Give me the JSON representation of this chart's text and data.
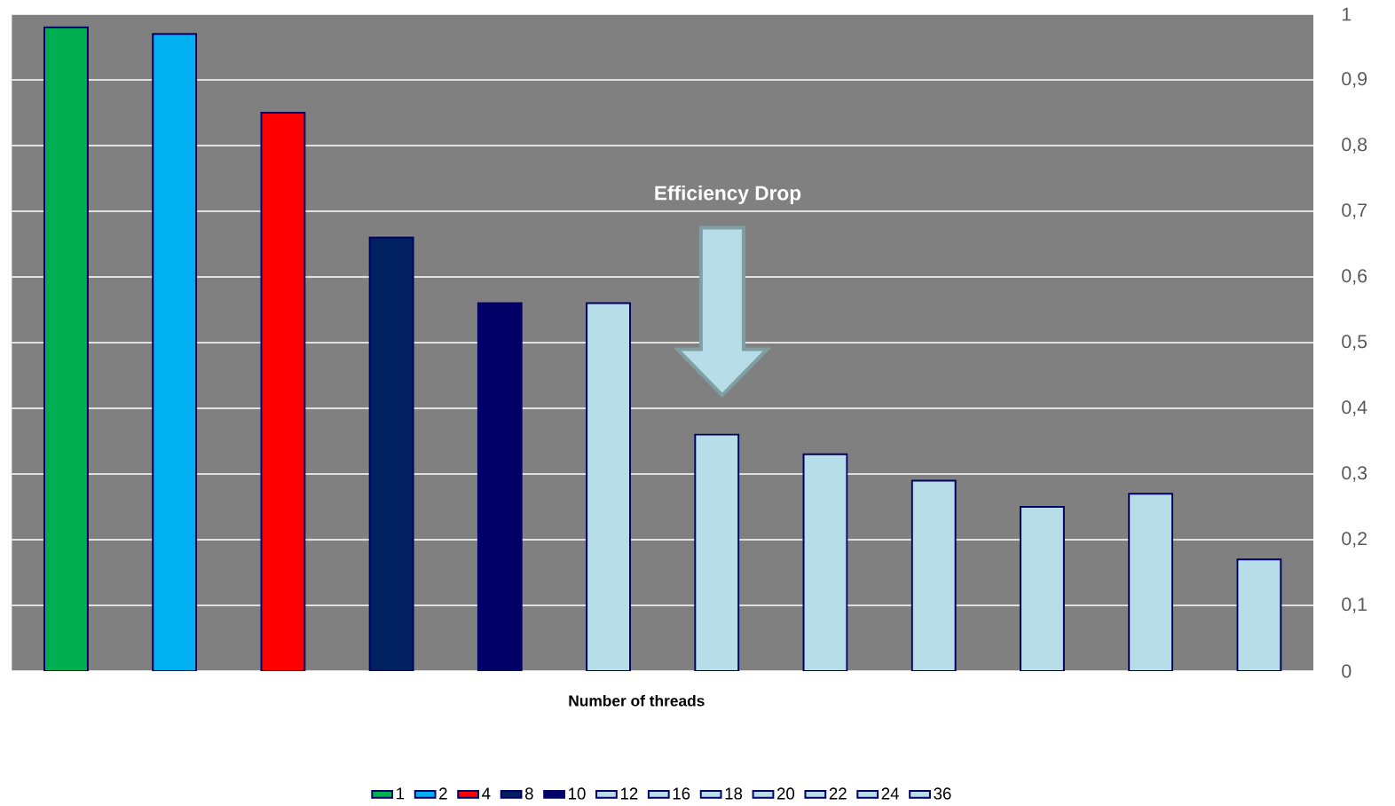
{
  "chart_data": {
    "type": "bar",
    "xlabel": "Number of threads",
    "annotations": [
      "Efficiency Drop"
    ],
    "categories": [
      null,
      null,
      null,
      null,
      null,
      null,
      null,
      null,
      null,
      null,
      null,
      null
    ],
    "ylim": [
      0,
      1
    ],
    "yticks": [
      0,
      {
        "value": 0.1,
        "label": "0,1"
      },
      {
        "value": 0.2,
        "label": "0,2"
      },
      {
        "value": 0.3,
        "label": "0,3"
      },
      {
        "value": 0.4,
        "label": "0,4"
      },
      {
        "value": 0.5,
        "label": "0,5"
      },
      {
        "value": 0.6,
        "label": "0,6"
      },
      {
        "value": 0.7,
        "label": "0,7"
      },
      {
        "value": 0.8,
        "label": "0,8"
      },
      {
        "value": 0.9,
        "label": "0,9"
      },
      1
    ],
    "grid": "y",
    "legend": "bottom",
    "series": [
      {
        "name": "1",
        "color": "#00b050",
        "values": [
          0.98,
          null,
          null,
          null,
          null,
          null,
          null,
          null,
          null,
          null,
          null,
          null
        ]
      },
      {
        "name": "2",
        "color": "#00b0f0",
        "values": [
          null,
          0.97,
          null,
          null,
          null,
          null,
          null,
          null,
          null,
          null,
          null,
          null
        ]
      },
      {
        "name": "4",
        "color": "#ff0000",
        "values": [
          null,
          null,
          0.85,
          null,
          null,
          null,
          null,
          null,
          null,
          null,
          null,
          null
        ]
      },
      {
        "name": "8",
        "color": "#002060",
        "values": [
          null,
          null,
          null,
          0.66,
          null,
          null,
          null,
          null,
          null,
          null,
          null,
          null
        ]
      },
      {
        "name": "10",
        "color": "#000066",
        "values": [
          null,
          null,
          null,
          null,
          0.56,
          null,
          null,
          null,
          null,
          null,
          null,
          null
        ]
      },
      {
        "name": "12",
        "color": "#b7dee8",
        "values": [
          null,
          null,
          null,
          null,
          null,
          0.56,
          null,
          null,
          null,
          null,
          null,
          null
        ]
      },
      {
        "name": "16",
        "color": "#b7dee8",
        "values": [
          null,
          null,
          null,
          null,
          null,
          null,
          0.36,
          null,
          null,
          null,
          null,
          null
        ]
      },
      {
        "name": "18",
        "color": "#b7dee8",
        "values": [
          null,
          null,
          null,
          null,
          null,
          null,
          null,
          0.33,
          null,
          null,
          null,
          null
        ]
      },
      {
        "name": "20",
        "color": "#b7dee8",
        "values": [
          null,
          null,
          null,
          null,
          null,
          null,
          null,
          null,
          0.29,
          null,
          null,
          null
        ]
      },
      {
        "name": "22",
        "color": "#b7dee8",
        "values": [
          null,
          null,
          null,
          null,
          null,
          null,
          null,
          null,
          null,
          0.25,
          null,
          null
        ]
      },
      {
        "name": "24",
        "color": "#b7dee8",
        "values": [
          null,
          null,
          null,
          null,
          null,
          null,
          null,
          null,
          null,
          null,
          0.27,
          null
        ]
      },
      {
        "name": "36",
        "color": "#b7dee8",
        "values": [
          null,
          null,
          null,
          null,
          null,
          null,
          null,
          null,
          null,
          null,
          null,
          0.17
        ]
      }
    ]
  }
}
